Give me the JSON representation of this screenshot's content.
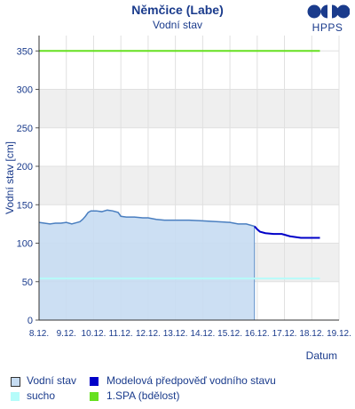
{
  "header": {
    "title": "Němčice (Labe)",
    "subtitle": "Vodní stav"
  },
  "logo": {
    "text": "HPPS",
    "icon": "hpps-logo-icon"
  },
  "colors": {
    "observed_fill": "#c6dcf2",
    "observed_line": "#4a7fc0",
    "forecast_line": "#0000c8",
    "sucho": "#b5fcfa",
    "spa1": "#66e020",
    "axis_text": "#1a3b8c",
    "band": "#efefef",
    "grid": "#e0e0e0"
  },
  "legend": [
    {
      "label": "Vodní stav",
      "swatch": "observed"
    },
    {
      "label": "Modelová předpověď vodního stavu",
      "swatch": "forecast"
    },
    {
      "label": "sucho",
      "swatch": "sucho"
    },
    {
      "label": "1.SPA (bdělost)",
      "swatch": "spa1"
    }
  ],
  "chart_data": {
    "type": "line",
    "title": "Němčice (Labe)",
    "subtitle": "Vodní stav",
    "xlabel": "Datum",
    "ylabel": "Vodní stav [cm]",
    "ylim": [
      0,
      370
    ],
    "xlim": [
      0,
      11
    ],
    "yticks": [
      0,
      50,
      100,
      150,
      200,
      250,
      300,
      350
    ],
    "xticks": [
      "8.12.",
      "9.12.",
      "10.12.",
      "11.12.",
      "12.12.",
      "13.12.",
      "14.12.",
      "15.12.",
      "16.12.",
      "17.12.",
      "18.12.",
      "19.12."
    ],
    "grid": true,
    "legend_position": "bottom",
    "series": [
      {
        "name": "Vodní stav",
        "kind": "area",
        "x": [
          0,
          0.2,
          0.4,
          0.6,
          0.8,
          1.0,
          1.2,
          1.4,
          1.5,
          1.6,
          1.7,
          1.8,
          1.9,
          2.0,
          2.1,
          2.3,
          2.5,
          2.7,
          2.9,
          3.0,
          3.2,
          3.5,
          3.8,
          4.0,
          4.3,
          4.6,
          5.0,
          5.5,
          6.0,
          6.5,
          7.0,
          7.3,
          7.6,
          7.8,
          7.9
        ],
        "y": [
          127,
          126,
          125,
          126,
          126,
          127,
          125,
          127,
          128,
          131,
          135,
          140,
          142,
          142,
          142,
          141,
          143,
          142,
          140,
          135,
          134,
          134,
          133,
          133,
          131,
          130,
          130,
          130,
          129,
          128,
          127,
          125,
          125,
          123,
          122
        ]
      },
      {
        "name": "Modelová předpověď vodního stavu",
        "kind": "line",
        "x": [
          7.9,
          8.0,
          8.1,
          8.3,
          8.6,
          8.9,
          9.0,
          9.2,
          9.4,
          9.6,
          9.8,
          10.0,
          10.3
        ],
        "y": [
          122,
          118,
          115,
          113,
          112,
          112,
          111,
          109,
          108,
          107,
          107,
          107,
          107
        ]
      },
      {
        "name": "sucho",
        "kind": "line",
        "x": [
          0,
          10.3
        ],
        "y": [
          54,
          54
        ]
      },
      {
        "name": "1.SPA (bdělost)",
        "kind": "line",
        "x": [
          0,
          10.3
        ],
        "y": [
          350,
          350
        ]
      }
    ]
  }
}
